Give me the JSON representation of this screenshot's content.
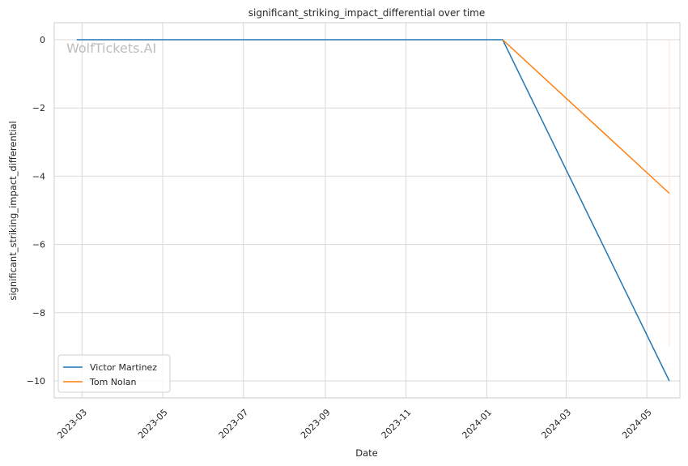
{
  "chart_data": {
    "type": "line",
    "title": "significant_striking_impact_differential over time",
    "xlabel": "Date",
    "ylabel": "significant_striking_impact_differential",
    "watermark": "WolfTickets.AI",
    "xlim": [
      "2023-02-08",
      "2024-05-26"
    ],
    "ylim": [
      -10.5,
      0.5
    ],
    "x_ticks": [
      "2023-03",
      "2023-05",
      "2023-07",
      "2023-09",
      "2023-11",
      "2024-01",
      "2024-03",
      "2024-05"
    ],
    "y_ticks": [
      "0",
      "−2",
      "−4",
      "−6",
      "−8",
      "−10"
    ],
    "y_tick_values": [
      0,
      -2,
      -4,
      -6,
      -8,
      -10
    ],
    "grid": true,
    "legend_position": "lower-left",
    "series": [
      {
        "name": "Victor Martinez",
        "color": "#1f77b4",
        "x": [
          "2023-02-25",
          "2024-01-13",
          "2024-05-18"
        ],
        "y": [
          0,
          0,
          -10
        ]
      },
      {
        "name": "Tom Nolan",
        "color": "#ff7f0e",
        "x": [
          "2024-01-13",
          "2024-05-18"
        ],
        "y": [
          0,
          -4.5
        ]
      }
    ],
    "annotations": [
      {
        "type": "vertical-line",
        "x": "2024-05-18",
        "y_from": 0,
        "y_to": -9,
        "color": "#ffe5cc"
      }
    ]
  }
}
